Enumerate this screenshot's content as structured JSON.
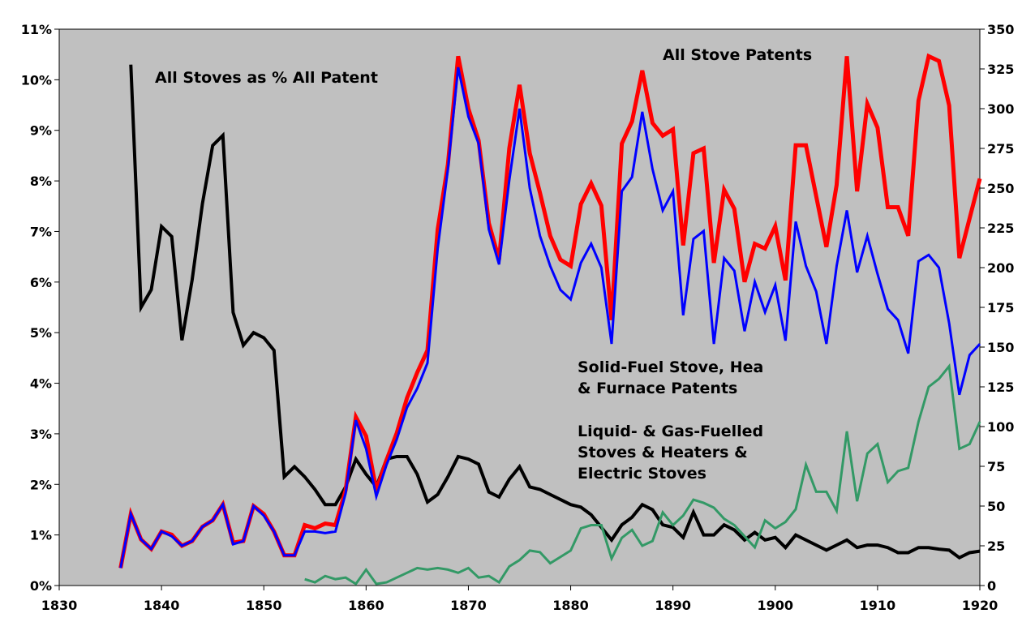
{
  "chart_data": {
    "type": "line",
    "title": "",
    "xlabel": "",
    "ylabel_left": "",
    "ylabel_right": "",
    "plot_background": "#c0c0c0",
    "grid": false,
    "legend": "none",
    "x_axis": {
      "min": 1830,
      "max": 1920,
      "ticks": [
        1830,
        1840,
        1850,
        1860,
        1870,
        1880,
        1890,
        1900,
        1910,
        1920
      ]
    },
    "y_left_axis": {
      "min": 0,
      "max": 11,
      "unit": "%",
      "ticks": [
        "0%",
        "1%",
        "2%",
        "3%",
        "4%",
        "5%",
        "6%",
        "7%",
        "8%",
        "9%",
        "10%",
        "11%"
      ]
    },
    "y_right_axis": {
      "min": 0,
      "max": 350,
      "ticks": [
        0,
        25,
        50,
        75,
        100,
        125,
        150,
        175,
        200,
        225,
        250,
        275,
        300,
        325,
        350
      ]
    },
    "annotations": [
      {
        "id": "pct",
        "lines": [
          "All Stoves as % All Patent"
        ]
      },
      {
        "id": "all",
        "lines": [
          "All Stove Patents"
        ]
      },
      {
        "id": "solid",
        "lines": [
          "Solid-Fuel Stove, Hea",
          "& Furnace Patents"
        ]
      },
      {
        "id": "liquid",
        "lines": [
          "Liquid- & Gas-Fuelled",
          "Stoves & Heaters &",
          "Electric Stoves"
        ]
      }
    ],
    "series": [
      {
        "axis": "left",
        "color": "#000000",
        "width": 4,
        "x": [
          1836,
          1837,
          1838,
          1839,
          1840,
          1841,
          1842,
          1843,
          1844,
          1845,
          1846,
          1847,
          1848,
          1849,
          1850,
          1851,
          1852,
          1853,
          1854,
          1855,
          1856,
          1857,
          1858,
          1859,
          1860,
          1861,
          1862,
          1863,
          1864,
          1865,
          1866,
          1867,
          1868,
          1869,
          1870,
          1871,
          1872,
          1873,
          1874,
          1875,
          1876,
          1877,
          1878,
          1879,
          1880,
          1881,
          1882,
          1883,
          1884,
          1885,
          1886,
          1887,
          1888,
          1889,
          1890,
          1891,
          1892,
          1893,
          1894,
          1895,
          1896,
          1897,
          1898,
          1899,
          1900,
          1901,
          1902,
          1903,
          1904,
          1905,
          1906,
          1907,
          1908,
          1909,
          1910,
          1911,
          1912,
          1913,
          1914,
          1915,
          1916,
          1917,
          1918,
          1919,
          1920
        ],
        "y": [
          null,
          10.3,
          5.5,
          5.85,
          7.1,
          6.9,
          4.85,
          6.05,
          7.55,
          8.7,
          8.9,
          5.4,
          4.75,
          5.0,
          4.9,
          4.65,
          2.15,
          2.35,
          2.15,
          1.9,
          1.6,
          1.6,
          1.95,
          2.5,
          2.2,
          1.95,
          2.5,
          2.55,
          2.55,
          2.2,
          1.65,
          1.8,
          2.15,
          2.55,
          2.5,
          2.4,
          1.85,
          1.75,
          2.1,
          2.35,
          1.95,
          1.9,
          1.8,
          1.7,
          1.6,
          1.55,
          1.4,
          1.15,
          0.9,
          1.2,
          1.35,
          1.6,
          1.5,
          1.2,
          1.15,
          0.95,
          1.45,
          1.0,
          1.0,
          1.2,
          1.1,
          0.9,
          1.05,
          0.9,
          0.95,
          0.75,
          1.0,
          0.9,
          0.8,
          0.7,
          0.8,
          0.9,
          0.75,
          0.8,
          0.8,
          0.75,
          0.65,
          0.65,
          0.75,
          0.75,
          0.72,
          0.7,
          0.55,
          0.65,
          0.68
        ]
      },
      {
        "axis": "right",
        "color": "#ff0000",
        "width": 5,
        "x": [
          1836,
          1837,
          1838,
          1839,
          1840,
          1841,
          1842,
          1843,
          1844,
          1845,
          1846,
          1847,
          1848,
          1849,
          1850,
          1851,
          1852,
          1853,
          1854,
          1855,
          1856,
          1857,
          1858,
          1859,
          1860,
          1861,
          1862,
          1863,
          1864,
          1865,
          1866,
          1867,
          1868,
          1869,
          1870,
          1871,
          1872,
          1873,
          1874,
          1875,
          1876,
          1877,
          1878,
          1879,
          1880,
          1881,
          1882,
          1883,
          1884,
          1885,
          1886,
          1887,
          1888,
          1889,
          1890,
          1891,
          1892,
          1893,
          1894,
          1895,
          1896,
          1897,
          1898,
          1899,
          1900,
          1901,
          1902,
          1903,
          1904,
          1905,
          1906,
          1907,
          1908,
          1909,
          1910,
          1911,
          1912,
          1913,
          1914,
          1915,
          1916,
          1917,
          1918,
          1919,
          1920
        ],
        "y": [
          11,
          45,
          29,
          23,
          34,
          32,
          25,
          28,
          37,
          41,
          51,
          27,
          28,
          50,
          45,
          34,
          19,
          19,
          38,
          36,
          39,
          38,
          60,
          106,
          94,
          60,
          79,
          96,
          118,
          134,
          148,
          224,
          265,
          333,
          300,
          280,
          228,
          205,
          275,
          315,
          272,
          247,
          220,
          205,
          201,
          240,
          253,
          239,
          167,
          278,
          292,
          324,
          291,
          283,
          287,
          214,
          272,
          275,
          203,
          249,
          237,
          191,
          215,
          212,
          226,
          192,
          277,
          277,
          245,
          213,
          252,
          333,
          248,
          303,
          288,
          238,
          238,
          220,
          305,
          333,
          330,
          302,
          206,
          231,
          256
        ]
      },
      {
        "axis": "right",
        "color": "#0000ff",
        "width": 3,
        "x": [
          1836,
          1837,
          1838,
          1839,
          1840,
          1841,
          1842,
          1843,
          1844,
          1845,
          1846,
          1847,
          1848,
          1849,
          1850,
          1851,
          1852,
          1853,
          1854,
          1855,
          1856,
          1857,
          1858,
          1859,
          1860,
          1861,
          1862,
          1863,
          1864,
          1865,
          1866,
          1867,
          1868,
          1869,
          1870,
          1871,
          1872,
          1873,
          1874,
          1875,
          1876,
          1877,
          1878,
          1879,
          1880,
          1881,
          1882,
          1883,
          1884,
          1885,
          1886,
          1887,
          1888,
          1889,
          1890,
          1891,
          1892,
          1893,
          1894,
          1895,
          1896,
          1897,
          1898,
          1899,
          1900,
          1901,
          1902,
          1903,
          1904,
          1905,
          1906,
          1907,
          1908,
          1909,
          1910,
          1911,
          1912,
          1913,
          1914,
          1915,
          1916,
          1917,
          1918,
          1919,
          1920
        ],
        "y": [
          11,
          45,
          29,
          23,
          34,
          31,
          25,
          28,
          37,
          41,
          51,
          26,
          28,
          50,
          44,
          34,
          19,
          19,
          34,
          34,
          33,
          34,
          58,
          104,
          86,
          56,
          76,
          92,
          112,
          124,
          140,
          212,
          262,
          326,
          295,
          278,
          224,
          202,
          255,
          300,
          250,
          220,
          201,
          186,
          180,
          203,
          215,
          200,
          152,
          248,
          257,
          298,
          262,
          236,
          248,
          170,
          218,
          223,
          152,
          206,
          198,
          160,
          191,
          172,
          189,
          154,
          229,
          201,
          185,
          152,
          201,
          236,
          197,
          220,
          196,
          174,
          167,
          146,
          204,
          208,
          200,
          165,
          120,
          145,
          152
        ]
      },
      {
        "axis": "right",
        "color": "#339966",
        "width": 3,
        "x": [
          1836,
          1837,
          1838,
          1839,
          1840,
          1841,
          1842,
          1843,
          1844,
          1845,
          1846,
          1847,
          1848,
          1849,
          1850,
          1851,
          1852,
          1853,
          1854,
          1855,
          1856,
          1857,
          1858,
          1859,
          1860,
          1861,
          1862,
          1863,
          1864,
          1865,
          1866,
          1867,
          1868,
          1869,
          1870,
          1871,
          1872,
          1873,
          1874,
          1875,
          1876,
          1877,
          1878,
          1879,
          1880,
          1881,
          1882,
          1883,
          1884,
          1885,
          1886,
          1887,
          1888,
          1889,
          1890,
          1891,
          1892,
          1893,
          1894,
          1895,
          1896,
          1897,
          1898,
          1899,
          1900,
          1901,
          1902,
          1903,
          1904,
          1905,
          1906,
          1907,
          1908,
          1909,
          1910,
          1911,
          1912,
          1913,
          1914,
          1915,
          1916,
          1917,
          1918,
          1919,
          1920
        ],
        "y": [
          null,
          null,
          null,
          null,
          null,
          null,
          null,
          null,
          null,
          null,
          null,
          null,
          null,
          null,
          null,
          null,
          null,
          null,
          4,
          2,
          6,
          4,
          5,
          1,
          10,
          1,
          2,
          5,
          8,
          11,
          10,
          11,
          10,
          8,
          11,
          5,
          6,
          2,
          12,
          16,
          22,
          21,
          14,
          18,
          22,
          36,
          38,
          38,
          17,
          30,
          35,
          25,
          28,
          46,
          38,
          44,
          54,
          52,
          49,
          42,
          38,
          31,
          24,
          41,
          36,
          40,
          48,
          76,
          59,
          59,
          47,
          97,
          53,
          83,
          89,
          65,
          72,
          74,
          103,
          125,
          130,
          138,
          86,
          89,
          103
        ]
      }
    ]
  }
}
